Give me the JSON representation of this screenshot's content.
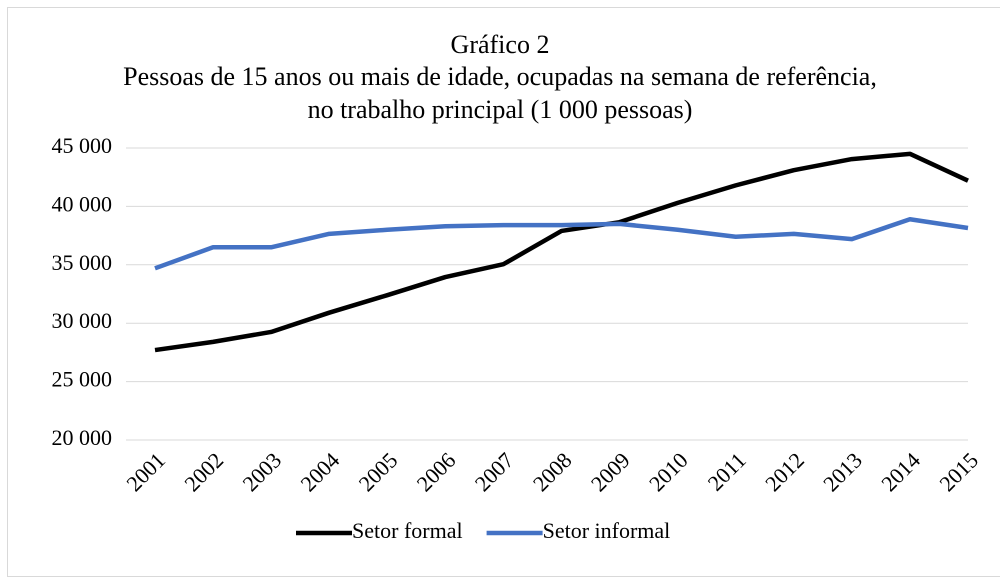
{
  "chart_data": {
    "type": "line",
    "title": "Gráfico 2",
    "subtitle": "Pessoas de 15 anos ou mais de idade, ocupadas na semana de referência, no trabalho principal (1 000 pessoas)",
    "categories": [
      "2001",
      "2002",
      "2003",
      "2004",
      "2005",
      "2006",
      "2007",
      "2008",
      "2009",
      "2010",
      "2011",
      "2012",
      "2013",
      "2014",
      "2015"
    ],
    "series": [
      {
        "name": "Setor formal",
        "color": "#000000",
        "values": [
          27700,
          28400,
          29250,
          30900,
          32400,
          33950,
          35050,
          37900,
          38650,
          40300,
          41800,
          43100,
          44050,
          44500,
          42200
        ]
      },
      {
        "name": "Setor informal",
        "color": "#4472c4",
        "values": [
          34700,
          36500,
          36500,
          37650,
          38000,
          38300,
          38400,
          38400,
          38500,
          38000,
          37400,
          37650,
          37200,
          38900,
          38150
        ]
      }
    ],
    "ylim": [
      20000,
      45000
    ],
    "yticks": [
      {
        "value": 20000,
        "label": "20 000"
      },
      {
        "value": 25000,
        "label": "25 000"
      },
      {
        "value": 30000,
        "label": "30 000"
      },
      {
        "value": 35000,
        "label": "35 000"
      },
      {
        "value": 40000,
        "label": "40 000"
      },
      {
        "value": 45000,
        "label": "45 000"
      }
    ],
    "grid": true,
    "legend": "bottom"
  }
}
